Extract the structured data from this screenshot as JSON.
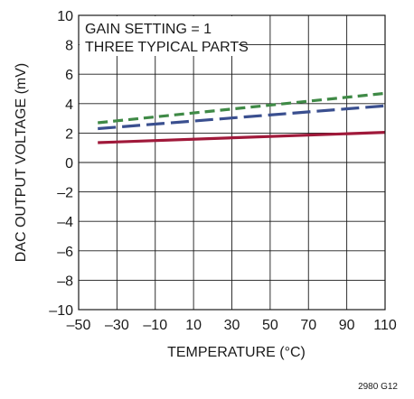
{
  "chart_data": {
    "type": "line",
    "title": "",
    "xlabel": "TEMPERATURE (°C)",
    "ylabel": "DAC OUTPUT VOLTAGE (mV)",
    "xlim": [
      -50,
      110
    ],
    "ylim": [
      -10,
      10
    ],
    "x_ticks": [
      -50,
      -30,
      -10,
      10,
      30,
      50,
      70,
      90,
      110
    ],
    "x_tick_labels": [
      "–50",
      "–30",
      "–10",
      "10",
      "30",
      "50",
      "70",
      "90",
      "110"
    ],
    "y_ticks": [
      -10,
      -8,
      -6,
      -4,
      -2,
      0,
      2,
      4,
      6,
      8,
      10
    ],
    "y_tick_labels": [
      "–10",
      "–8",
      "–6",
      "–4",
      "–2",
      "0",
      "2",
      "4",
      "6",
      "8",
      "10"
    ],
    "grid": true,
    "annotations": [
      "GAIN SETTING = 1",
      "THREE TYPICAL PARTS"
    ],
    "figure_id": "2980 G12",
    "series": [
      {
        "x": [
          -40,
          110
        ],
        "y": [
          2.7,
          4.7
        ],
        "color": "#3f8a46",
        "dash": "dashed-short"
      },
      {
        "x": [
          -40,
          110
        ],
        "y": [
          2.3,
          3.85
        ],
        "color": "#3a4f8f",
        "dash": "dashed-long"
      },
      {
        "x": [
          -40,
          110
        ],
        "y": [
          1.35,
          2.05
        ],
        "color": "#a0193a",
        "dash": "solid"
      }
    ]
  }
}
